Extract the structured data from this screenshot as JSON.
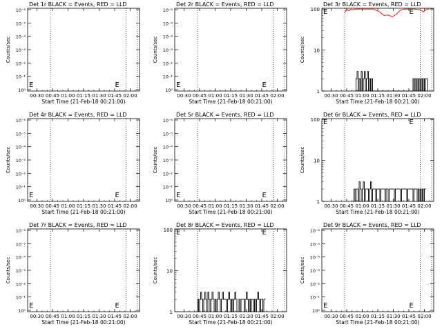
{
  "chart_data": [
    {
      "id": "det1",
      "title": "Det 1r BLACK = Events, RED = LLD",
      "xlabel": "Start Time (21-Feb-18 00:21:00)",
      "ylabel": "Counts/sec",
      "type": "line",
      "yscale": "log",
      "ytick_labels": [
        "10⁻⁶",
        "10⁻⁵",
        "10⁻⁴",
        "10⁻³",
        "10⁻²",
        "10⁻¹",
        "10⁰"
      ],
      "xtick_labels": [
        "00:30",
        "00:45",
        "01:00",
        "01:15",
        "01:30",
        "01:45",
        "02:00"
      ],
      "markers": [
        "E",
        "E"
      ],
      "black_series": [],
      "red_series": []
    },
    {
      "id": "det2",
      "title": "Det 2r BLACK = Events, RED = LLD",
      "xlabel": "Start Time (21-Feb-18 00:21:00)",
      "ylabel": "Counts/sec",
      "type": "line",
      "yscale": "log",
      "ytick_labels": [
        "10⁻⁶",
        "10⁻⁵",
        "10⁻⁴",
        "10⁻³",
        "10⁻²",
        "10⁻¹",
        "10⁰"
      ],
      "xtick_labels": [
        "00:30",
        "00:45",
        "01:00",
        "01:15",
        "01:30",
        "01:45",
        "02:00"
      ],
      "markers": [
        "E",
        "E"
      ],
      "black_series": [],
      "red_series": []
    },
    {
      "id": "det3",
      "title": "Det 3r BLACK = Events, RED = LLD",
      "xlabel": "Start Time (21-Feb-18 00:21:00)",
      "ylabel": "Counts/sec",
      "type": "line",
      "yscale": "log",
      "ytick_labels": [
        "1",
        "10",
        "100"
      ],
      "xtick_labels": [
        "00:30",
        "00:45",
        "01:00",
        "01:15",
        "01:30",
        "01:45",
        "02:00"
      ],
      "markers": [
        "E",
        "E"
      ],
      "black_series": [
        [
          32,
          1
        ],
        [
          33,
          2
        ],
        [
          34,
          3
        ],
        [
          35,
          1
        ],
        [
          36,
          2
        ],
        [
          37,
          1
        ],
        [
          38,
          3
        ],
        [
          39,
          1
        ],
        [
          40,
          2
        ],
        [
          41,
          3
        ],
        [
          42,
          1
        ],
        [
          43,
          2
        ],
        [
          44,
          3
        ],
        [
          45,
          1
        ],
        [
          46,
          2
        ],
        [
          47,
          1
        ],
        [
          48,
          2
        ],
        [
          49,
          1
        ],
        [
          88,
          2
        ],
        [
          89,
          1
        ],
        [
          90,
          2
        ],
        [
          91,
          1
        ],
        [
          92,
          2
        ],
        [
          93,
          1
        ],
        [
          94,
          2
        ],
        [
          95,
          1
        ],
        [
          96,
          2
        ],
        [
          97,
          1
        ],
        [
          98,
          2
        ],
        [
          99,
          1
        ],
        [
          100,
          2
        ],
        [
          101,
          2
        ],
        [
          102,
          1
        ]
      ],
      "red_series": [
        [
          22,
          80
        ],
        [
          24,
          100
        ],
        [
          26,
          90
        ],
        [
          28,
          100
        ],
        [
          30,
          95
        ],
        [
          32,
          100
        ],
        [
          34,
          100
        ],
        [
          40,
          100
        ],
        [
          50,
          100
        ],
        [
          56,
          85
        ],
        [
          60,
          70
        ],
        [
          64,
          72
        ],
        [
          68,
          65
        ],
        [
          72,
          75
        ],
        [
          76,
          95
        ],
        [
          80,
          100
        ],
        [
          86,
          100
        ],
        [
          90,
          100
        ],
        [
          96,
          95
        ],
        [
          98,
          85
        ],
        [
          101,
          100
        ],
        [
          104,
          100
        ]
      ]
    },
    {
      "id": "det4",
      "title": "Det 4r BLACK = Events, RED = LLD",
      "xlabel": "Start Time (21-Feb-18 00:21:00)",
      "ylabel": "Counts/sec",
      "type": "line",
      "yscale": "log",
      "ytick_labels": [
        "10⁻⁶",
        "10⁻⁵",
        "10⁻⁴",
        "10⁻³",
        "10⁻²",
        "10⁻¹",
        "10⁰"
      ],
      "xtick_labels": [
        "00:30",
        "00:45",
        "01:00",
        "01:15",
        "01:30",
        "01:45",
        "02:00"
      ],
      "markers": [
        "E",
        "E"
      ],
      "black_series": [],
      "red_series": []
    },
    {
      "id": "det5",
      "title": "Det 5r BLACK = Events, RED = LLD",
      "xlabel": "Start Time (21-Feb-18 00:21:00)",
      "ylabel": "Counts/sec",
      "type": "line",
      "yscale": "log",
      "ytick_labels": [
        "10⁻⁶",
        "10⁻⁵",
        "10⁻⁴",
        "10⁻³",
        "10⁻²",
        "10⁻¹",
        "10⁰"
      ],
      "xtick_labels": [
        "00:30",
        "00:45",
        "01:00",
        "01:15",
        "01:30",
        "01:45",
        "02:00"
      ],
      "markers": [
        "E",
        "E"
      ],
      "black_series": [],
      "red_series": []
    },
    {
      "id": "det6",
      "title": "Det 6r BLACK = Events, RED = LLD",
      "xlabel": "Start Time (21-Feb-18 00:21:00)",
      "ylabel": "Counts/sec",
      "type": "line",
      "yscale": "log",
      "ytick_labels": [
        "1",
        "10",
        "100"
      ],
      "xtick_labels": [
        "00:30",
        "00:45",
        "01:00",
        "01:15",
        "01:30",
        "01:45",
        "02:00"
      ],
      "markers": [
        "E",
        "E"
      ],
      "black_series": [
        [
          30,
          1
        ],
        [
          31,
          2
        ],
        [
          32,
          1
        ],
        [
          33,
          2
        ],
        [
          34,
          2
        ],
        [
          35,
          1
        ],
        [
          36,
          3
        ],
        [
          37,
          2
        ],
        [
          38,
          1
        ],
        [
          39,
          2
        ],
        [
          40,
          3
        ],
        [
          41,
          1
        ],
        [
          42,
          2
        ],
        [
          44,
          2
        ],
        [
          45,
          1
        ],
        [
          46,
          2
        ],
        [
          47,
          3
        ],
        [
          48,
          1
        ],
        [
          49,
          2
        ],
        [
          50,
          2
        ],
        [
          52,
          1
        ],
        [
          53,
          2
        ],
        [
          56,
          1
        ],
        [
          57,
          2
        ],
        [
          60,
          2
        ],
        [
          61,
          1
        ],
        [
          62,
          2
        ],
        [
          64,
          1
        ],
        [
          65,
          2
        ],
        [
          68,
          2
        ],
        [
          70,
          1
        ],
        [
          71,
          2
        ],
        [
          74,
          2
        ],
        [
          76,
          1
        ],
        [
          77,
          2
        ],
        [
          80,
          2
        ],
        [
          82,
          1
        ],
        [
          83,
          2
        ],
        [
          86,
          2
        ],
        [
          88,
          1
        ],
        [
          89,
          2
        ],
        [
          92,
          1
        ],
        [
          93,
          2
        ],
        [
          94,
          1
        ],
        [
          95,
          2
        ],
        [
          96,
          1
        ],
        [
          97,
          2
        ],
        [
          98,
          1
        ],
        [
          99,
          2
        ],
        [
          100,
          2
        ]
      ],
      "red_series": []
    },
    {
      "id": "det7",
      "title": "Det 7r BLACK = Events, RED = LLD",
      "xlabel": "Start Time (21-Feb-18 00:21:00)",
      "ylabel": "Counts/sec",
      "type": "line",
      "yscale": "log",
      "ytick_labels": [
        "10⁻⁶",
        "10⁻⁵",
        "10⁻⁴",
        "10⁻³",
        "10⁻²",
        "10⁻¹",
        "10⁰"
      ],
      "xtick_labels": [
        "00:30",
        "00:45",
        "01:00",
        "01:15",
        "01:30",
        "01:45",
        "02:00"
      ],
      "markers": [
        "E",
        "E"
      ],
      "black_series": [],
      "red_series": []
    },
    {
      "id": "det8",
      "title": "Det 8r BLACK = Events, RED = LLD",
      "xlabel": "Start Time (21-Feb-18 00:21:00)",
      "ylabel": "Counts/sec",
      "type": "line",
      "yscale": "log",
      "ytick_labels": [
        "1",
        "10",
        "100"
      ],
      "xtick_labels": [
        "00:30",
        "00:45",
        "01:00",
        "01:15",
        "01:30",
        "01:45",
        "02:00"
      ],
      "markers": [
        "E",
        "E"
      ],
      "black_series": [
        [
          21,
          1
        ],
        [
          22,
          2
        ],
        [
          23,
          1
        ],
        [
          24,
          2
        ],
        [
          25,
          3
        ],
        [
          26,
          2
        ],
        [
          27,
          1
        ],
        [
          28,
          2
        ],
        [
          29,
          3
        ],
        [
          30,
          2
        ],
        [
          31,
          1
        ],
        [
          32,
          3
        ],
        [
          33,
          2
        ],
        [
          34,
          1
        ],
        [
          35,
          2
        ],
        [
          36,
          3
        ],
        [
          37,
          2
        ],
        [
          38,
          1
        ],
        [
          39,
          2
        ],
        [
          40,
          1
        ],
        [
          41,
          2
        ],
        [
          42,
          3
        ],
        [
          43,
          2
        ],
        [
          44,
          1
        ],
        [
          45,
          2
        ],
        [
          46,
          3
        ],
        [
          47,
          2
        ],
        [
          48,
          2
        ],
        [
          50,
          1
        ],
        [
          51,
          2
        ],
        [
          52,
          3
        ],
        [
          53,
          2
        ],
        [
          54,
          1
        ],
        [
          55,
          2
        ],
        [
          56,
          1
        ],
        [
          57,
          2
        ],
        [
          58,
          3
        ],
        [
          59,
          2
        ],
        [
          60,
          1
        ],
        [
          62,
          2
        ],
        [
          63,
          1
        ],
        [
          64,
          2
        ],
        [
          66,
          2
        ],
        [
          67,
          1
        ],
        [
          68,
          2
        ],
        [
          69,
          3
        ],
        [
          70,
          2
        ],
        [
          71,
          1
        ],
        [
          72,
          2
        ],
        [
          73,
          1
        ],
        [
          74,
          2
        ],
        [
          75,
          2
        ],
        [
          76,
          1
        ],
        [
          77,
          2
        ],
        [
          78,
          1
        ],
        [
          79,
          2
        ],
        [
          80,
          3
        ],
        [
          81,
          2
        ],
        [
          82,
          1
        ],
        [
          83,
          2
        ],
        [
          84,
          2
        ],
        [
          85,
          1
        ],
        [
          86,
          2
        ],
        [
          87,
          2
        ]
      ],
      "red_series": []
    },
    {
      "id": "det9",
      "title": "Det 9r BLACK = Events, RED = LLD",
      "xlabel": "Start Time (21-Feb-18 00:21:00)",
      "ylabel": "Counts/sec",
      "type": "line",
      "yscale": "log",
      "ytick_labels": [
        "10⁻⁶",
        "10⁻⁵",
        "10⁻⁴",
        "10⁻³",
        "10⁻²",
        "10⁻¹",
        "10⁰"
      ],
      "xtick_labels": [
        "00:30",
        "00:45",
        "01:00",
        "01:15",
        "01:30",
        "01:45",
        "02:00"
      ],
      "markers": [
        "E",
        "E"
      ],
      "black_series": [],
      "red_series": []
    }
  ],
  "colors": {
    "events": "#000000",
    "lld": "#ff0000",
    "axes": "#000000",
    "background": "#ffffff"
  }
}
